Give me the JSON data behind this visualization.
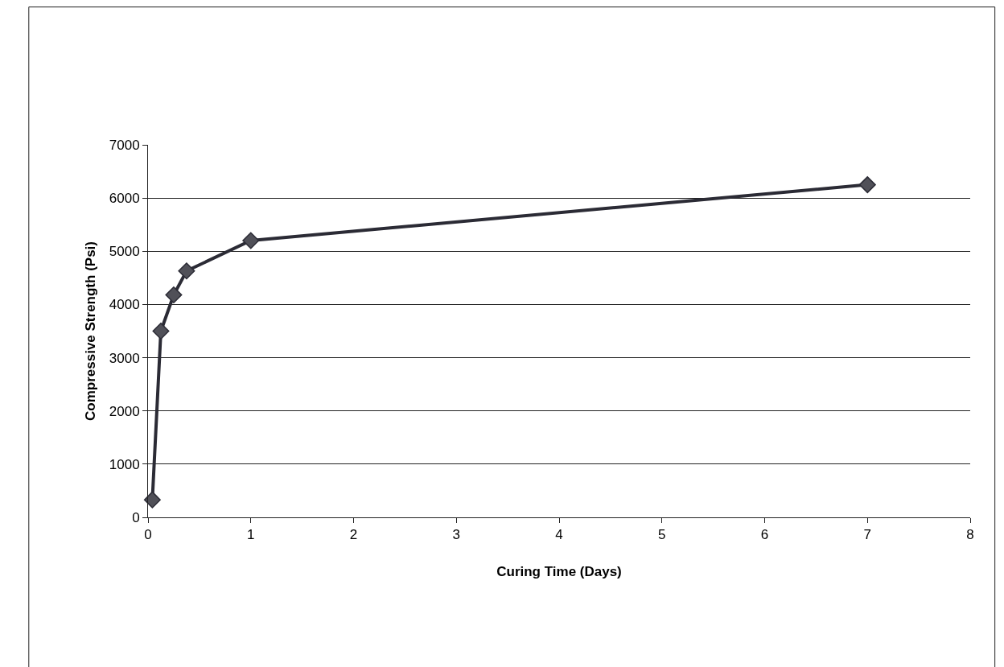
{
  "chart_data": {
    "type": "line",
    "xlabel": "Curing Time (Days)",
    "ylabel": "Compressive Strength (Psi)",
    "x": [
      0.042,
      0.125,
      0.25,
      0.375,
      1,
      7
    ],
    "series": [
      {
        "color": "#2b2b35",
        "values": [
          330,
          3500,
          4180,
          4630,
          5200,
          6250
        ]
      }
    ],
    "xlim": [
      0,
      8
    ],
    "xticks": [
      0,
      1,
      2,
      3,
      4,
      5,
      6,
      7,
      8
    ],
    "ylim": [
      0,
      7000
    ],
    "yticks": [
      0,
      1000,
      2000,
      3000,
      4000,
      5000,
      6000,
      7000
    ],
    "grid": "y",
    "legend": false,
    "marker": "diamond",
    "line_style": "solid"
  }
}
